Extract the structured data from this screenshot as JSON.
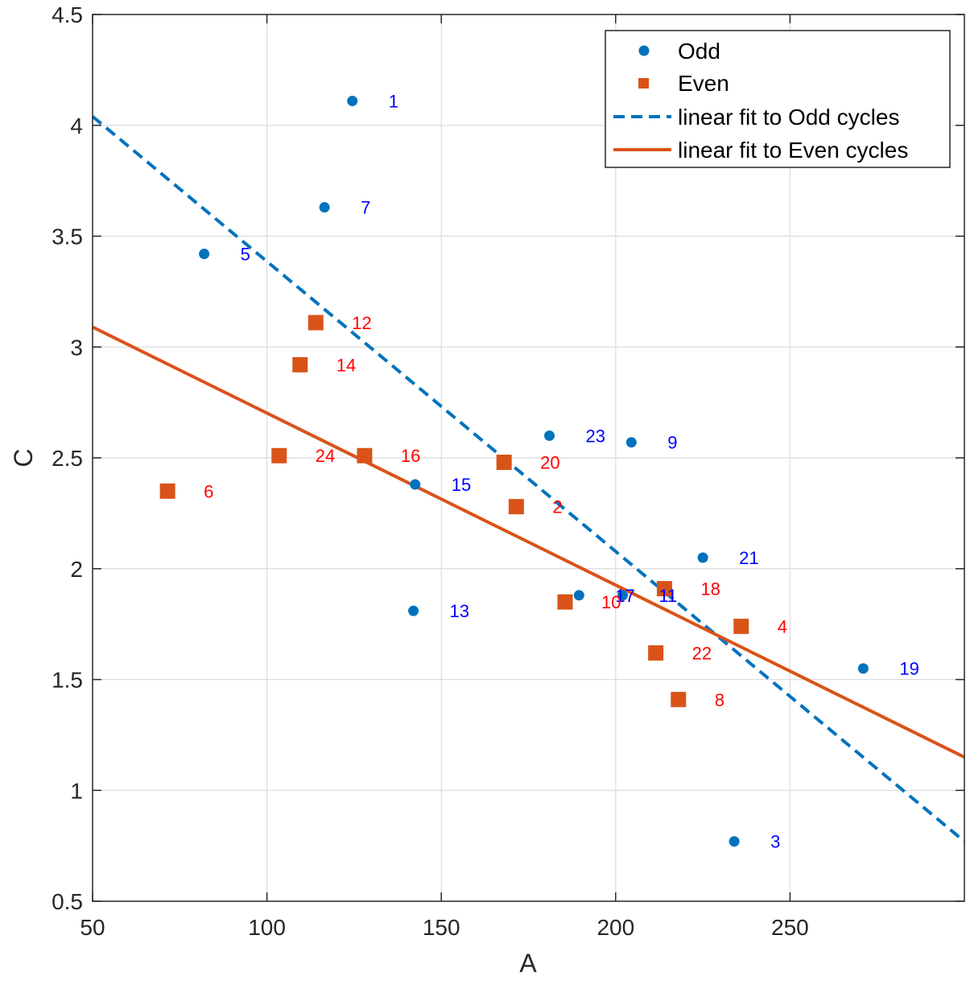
{
  "chart_data": {
    "type": "scatter",
    "xlabel": "A",
    "ylabel": "C",
    "xlim": [
      50,
      300
    ],
    "ylim": [
      0.5,
      4.5
    ],
    "x_ticks": [
      50,
      100,
      150,
      200,
      250
    ],
    "y_ticks": [
      0.5,
      1,
      1.5,
      2,
      2.5,
      3,
      3.5,
      4,
      4.5
    ],
    "x_tick_labels": [
      "50",
      "100",
      "150",
      "200",
      "250"
    ],
    "y_tick_labels": [
      "0.5",
      "1",
      "1.5",
      "2",
      "2.5",
      "3",
      "3.5",
      "4",
      "4.5"
    ],
    "grid": true,
    "legend_position": "top-right",
    "colors": {
      "odd": "#0072BD",
      "even": "#D95319",
      "odd_label": "#0000FF",
      "even_label": "#FF0000"
    },
    "series": [
      {
        "name": "Odd",
        "marker": "circle",
        "points": [
          {
            "x": 124.5,
            "y": 4.11,
            "label": "1"
          },
          {
            "x": 234.0,
            "y": 0.77,
            "label": "3"
          },
          {
            "x": 82.0,
            "y": 3.42,
            "label": "5"
          },
          {
            "x": 116.5,
            "y": 3.63,
            "label": "7"
          },
          {
            "x": 204.5,
            "y": 2.57,
            "label": "9"
          },
          {
            "x": 202.0,
            "y": 1.88,
            "label": "11"
          },
          {
            "x": 142.0,
            "y": 1.81,
            "label": "13"
          },
          {
            "x": 142.5,
            "y": 2.38,
            "label": "15"
          },
          {
            "x": 189.5,
            "y": 1.88,
            "label": "17"
          },
          {
            "x": 271.0,
            "y": 1.55,
            "label": "19"
          },
          {
            "x": 225.0,
            "y": 2.05,
            "label": "21"
          },
          {
            "x": 181.0,
            "y": 2.6,
            "label": "23"
          }
        ]
      },
      {
        "name": "Even",
        "marker": "square",
        "points": [
          {
            "x": 171.5,
            "y": 2.28,
            "label": "2"
          },
          {
            "x": 236.0,
            "y": 1.74,
            "label": "4"
          },
          {
            "x": 71.5,
            "y": 2.35,
            "label": "6"
          },
          {
            "x": 218.0,
            "y": 1.41,
            "label": "8"
          },
          {
            "x": 185.5,
            "y": 1.85,
            "label": "10"
          },
          {
            "x": 114.0,
            "y": 3.11,
            "label": "12"
          },
          {
            "x": 109.5,
            "y": 2.92,
            "label": "14"
          },
          {
            "x": 128.0,
            "y": 2.51,
            "label": "16"
          },
          {
            "x": 214.0,
            "y": 1.91,
            "label": "18"
          },
          {
            "x": 168.0,
            "y": 2.48,
            "label": "20"
          },
          {
            "x": 211.5,
            "y": 1.62,
            "label": "22"
          },
          {
            "x": 103.5,
            "y": 2.51,
            "label": "24"
          }
        ]
      }
    ],
    "fits": [
      {
        "name": "linear fit to Odd cycles",
        "style": "dashed",
        "points": [
          [
            50,
            4.04
          ],
          [
            300,
            0.77
          ]
        ]
      },
      {
        "name": "linear fit to Even cycles",
        "style": "solid",
        "points": [
          [
            50,
            3.09
          ],
          [
            300,
            1.15
          ]
        ]
      }
    ]
  }
}
